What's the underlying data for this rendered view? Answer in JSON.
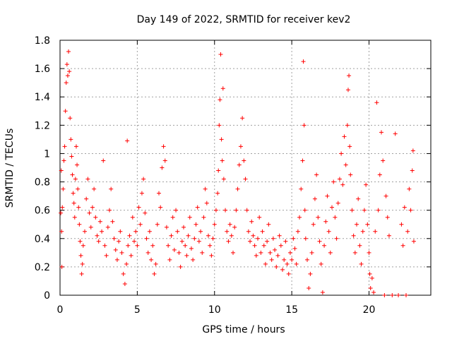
{
  "chart_data": {
    "type": "scatter",
    "title": "Day 149 of 2022, SRMTID for receiver kev2",
    "xlabel": "GPS time / hours",
    "ylabel": "SRMTID / TECUs",
    "xlim": [
      0,
      24
    ],
    "ylim": [
      0,
      1.8
    ],
    "xticks": [
      0,
      5,
      10,
      15,
      20
    ],
    "xtick_labels": [
      "0",
      "5",
      "10",
      "15",
      "20"
    ],
    "yticks": [
      0,
      0.2,
      0.4,
      0.6,
      0.8,
      1.0,
      1.2,
      1.4,
      1.6,
      1.8
    ],
    "ytick_labels": [
      "0",
      "0.2",
      "0.4",
      "0.6",
      "0.8",
      "1",
      "1.2",
      "1.4",
      "1.6",
      "1.8"
    ],
    "grid": true,
    "marker": "plus",
    "color": "#ff0000",
    "series": [
      {
        "name": "kev2",
        "points": [
          [
            0.05,
            0.58
          ],
          [
            0.08,
            0.88
          ],
          [
            0.1,
            0.45
          ],
          [
            0.12,
            0.2
          ],
          [
            0.15,
            0.62
          ],
          [
            0.2,
            0.75
          ],
          [
            0.25,
            0.95
          ],
          [
            0.3,
            1.05
          ],
          [
            0.35,
            1.3
          ],
          [
            0.4,
            1.5
          ],
          [
            0.45,
            1.63
          ],
          [
            0.5,
            1.55
          ],
          [
            0.55,
            1.72
          ],
          [
            0.6,
            1.58
          ],
          [
            0.65,
            1.25
          ],
          [
            0.7,
            1.1
          ],
          [
            0.75,
            0.98
          ],
          [
            0.8,
            0.85
          ],
          [
            0.85,
            0.72
          ],
          [
            0.9,
            0.65
          ],
          [
            0.95,
            0.55
          ],
          [
            1.0,
            0.82
          ],
          [
            1.05,
            1.05
          ],
          [
            1.1,
            0.92
          ],
          [
            1.15,
            0.75
          ],
          [
            1.2,
            0.62
          ],
          [
            1.25,
            0.5
          ],
          [
            1.3,
            0.38
          ],
          [
            1.35,
            0.28
          ],
          [
            1.4,
            0.15
          ],
          [
            1.45,
            0.22
          ],
          [
            1.5,
            0.35
          ],
          [
            1.6,
            0.45
          ],
          [
            1.7,
            0.68
          ],
          [
            1.8,
            0.82
          ],
          [
            1.9,
            0.58
          ],
          [
            2.0,
            0.48
          ],
          [
            2.1,
            0.62
          ],
          [
            2.2,
            0.75
          ],
          [
            2.3,
            0.55
          ],
          [
            2.4,
            0.42
          ],
          [
            2.5,
            0.38
          ],
          [
            2.6,
            0.52
          ],
          [
            2.7,
            0.45
          ],
          [
            2.8,
            0.95
          ],
          [
            2.9,
            0.35
          ],
          [
            3.0,
            0.28
          ],
          [
            3.1,
            0.48
          ],
          [
            3.2,
            0.6
          ],
          [
            3.3,
            0.75
          ],
          [
            3.4,
            0.52
          ],
          [
            3.5,
            0.4
          ],
          [
            3.6,
            0.32
          ],
          [
            3.7,
            0.25
          ],
          [
            3.8,
            0.38
          ],
          [
            3.9,
            0.45
          ],
          [
            4.0,
            0.3
          ],
          [
            4.1,
            0.15
          ],
          [
            4.2,
            0.08
          ],
          [
            4.3,
            0.22
          ],
          [
            4.35,
            1.09
          ],
          [
            4.4,
            0.35
          ],
          [
            4.5,
            0.42
          ],
          [
            4.6,
            0.28
          ],
          [
            4.7,
            0.55
          ],
          [
            4.8,
            0.38
          ],
          [
            4.9,
            0.45
          ],
          [
            5.0,
            0.35
          ],
          [
            5.1,
            0.62
          ],
          [
            5.2,
            0.5
          ],
          [
            5.3,
            0.72
          ],
          [
            5.4,
            0.82
          ],
          [
            5.5,
            0.58
          ],
          [
            5.6,
            0.4
          ],
          [
            5.7,
            0.3
          ],
          [
            5.8,
            0.45
          ],
          [
            5.9,
            0.25
          ],
          [
            6.0,
            0.35
          ],
          [
            6.1,
            0.15
          ],
          [
            6.2,
            0.22
          ],
          [
            6.3,
            0.5
          ],
          [
            6.4,
            0.72
          ],
          [
            6.5,
            0.62
          ],
          [
            6.6,
            0.9
          ],
          [
            6.7,
            1.05
          ],
          [
            6.8,
            0.95
          ],
          [
            6.9,
            0.48
          ],
          [
            7.0,
            0.35
          ],
          [
            7.1,
            0.25
          ],
          [
            7.2,
            0.42
          ],
          [
            7.3,
            0.55
          ],
          [
            7.4,
            0.32
          ],
          [
            7.5,
            0.6
          ],
          [
            7.6,
            0.45
          ],
          [
            7.7,
            0.3
          ],
          [
            7.8,
            0.2
          ],
          [
            7.9,
            0.38
          ],
          [
            8.0,
            0.48
          ],
          [
            8.1,
            0.35
          ],
          [
            8.2,
            0.28
          ],
          [
            8.3,
            0.42
          ],
          [
            8.4,
            0.55
          ],
          [
            8.5,
            0.33
          ],
          [
            8.6,
            0.25
          ],
          [
            8.7,
            0.4
          ],
          [
            8.8,
            0.5
          ],
          [
            8.9,
            0.62
          ],
          [
            9.0,
            0.38
          ],
          [
            9.1,
            0.45
          ],
          [
            9.2,
            0.3
          ],
          [
            9.3,
            0.55
          ],
          [
            9.4,
            0.75
          ],
          [
            9.5,
            0.65
          ],
          [
            9.6,
            0.42
          ],
          [
            9.7,
            0.35
          ],
          [
            9.8,
            0.28
          ],
          [
            9.9,
            0.4
          ],
          [
            10.0,
            0.5
          ],
          [
            10.1,
            0.6
          ],
          [
            10.2,
            0.72
          ],
          [
            10.25,
            0.88
          ],
          [
            10.3,
            1.2
          ],
          [
            10.35,
            1.38
          ],
          [
            10.4,
            1.7
          ],
          [
            10.45,
            1.1
          ],
          [
            10.5,
            0.95
          ],
          [
            10.55,
            1.46
          ],
          [
            10.6,
            0.82
          ],
          [
            10.7,
            0.6
          ],
          [
            10.8,
            0.45
          ],
          [
            10.9,
            0.38
          ],
          [
            11.0,
            0.5
          ],
          [
            11.1,
            0.42
          ],
          [
            11.2,
            0.3
          ],
          [
            11.3,
            0.48
          ],
          [
            11.4,
            0.6
          ],
          [
            11.5,
            0.75
          ],
          [
            11.6,
            0.92
          ],
          [
            11.7,
            1.05
          ],
          [
            11.8,
            1.25
          ],
          [
            11.9,
            0.95
          ],
          [
            12.0,
            0.82
          ],
          [
            12.1,
            0.6
          ],
          [
            12.2,
            0.45
          ],
          [
            12.3,
            0.38
          ],
          [
            12.4,
            0.52
          ],
          [
            12.5,
            0.42
          ],
          [
            12.6,
            0.35
          ],
          [
            12.7,
            0.28
          ],
          [
            12.8,
            0.4
          ],
          [
            12.9,
            0.55
          ],
          [
            13.0,
            0.3
          ],
          [
            13.1,
            0.45
          ],
          [
            13.2,
            0.35
          ],
          [
            13.3,
            0.22
          ],
          [
            13.4,
            0.38
          ],
          [
            13.5,
            0.5
          ],
          [
            13.6,
            0.3
          ],
          [
            13.7,
            0.25
          ],
          [
            13.8,
            0.4
          ],
          [
            13.9,
            0.32
          ],
          [
            14.0,
            0.2
          ],
          [
            14.1,
            0.28
          ],
          [
            14.2,
            0.42
          ],
          [
            14.3,
            0.35
          ],
          [
            14.4,
            0.18
          ],
          [
            14.5,
            0.25
          ],
          [
            14.6,
            0.38
          ],
          [
            14.7,
            0.22
          ],
          [
            14.8,
            0.15
          ],
          [
            14.9,
            0.3
          ],
          [
            15.0,
            0.25
          ],
          [
            15.1,
            0.4
          ],
          [
            15.2,
            0.33
          ],
          [
            15.3,
            0.22
          ],
          [
            15.4,
            0.45
          ],
          [
            15.5,
            0.55
          ],
          [
            15.6,
            0.75
          ],
          [
            15.7,
            0.95
          ],
          [
            15.75,
            1.65
          ],
          [
            15.8,
            1.2
          ],
          [
            15.85,
            0.6
          ],
          [
            15.9,
            0.4
          ],
          [
            16.0,
            0.25
          ],
          [
            16.1,
            0.05
          ],
          [
            16.2,
            0.15
          ],
          [
            16.3,
            0.3
          ],
          [
            16.4,
            0.5
          ],
          [
            16.5,
            0.68
          ],
          [
            16.6,
            0.85
          ],
          [
            16.7,
            0.55
          ],
          [
            16.8,
            0.38
          ],
          [
            16.9,
            0.22
          ],
          [
            17.0,
            0.02
          ],
          [
            17.1,
            0.35
          ],
          [
            17.2,
            0.52
          ],
          [
            17.3,
            0.7
          ],
          [
            17.4,
            0.45
          ],
          [
            17.5,
            0.3
          ],
          [
            17.6,
            0.62
          ],
          [
            17.7,
            0.8
          ],
          [
            17.8,
            0.55
          ],
          [
            17.9,
            0.4
          ],
          [
            18.0,
            0.65
          ],
          [
            18.1,
            0.82
          ],
          [
            18.2,
            1.0
          ],
          [
            18.3,
            0.78
          ],
          [
            18.4,
            1.12
          ],
          [
            18.5,
            0.92
          ],
          [
            18.6,
            1.2
          ],
          [
            18.65,
            1.45
          ],
          [
            18.7,
            1.55
          ],
          [
            18.75,
            1.05
          ],
          [
            18.8,
            0.85
          ],
          [
            18.9,
            0.6
          ],
          [
            19.0,
            0.42
          ],
          [
            19.1,
            0.3
          ],
          [
            19.2,
            0.5
          ],
          [
            19.3,
            0.68
          ],
          [
            19.4,
            0.35
          ],
          [
            19.5,
            0.22
          ],
          [
            19.6,
            0.45
          ],
          [
            19.7,
            0.6
          ],
          [
            19.8,
            0.78
          ],
          [
            19.9,
            0.5
          ],
          [
            20.0,
            0.3
          ],
          [
            20.05,
            0.15
          ],
          [
            20.1,
            0.05
          ],
          [
            20.2,
            0.12
          ],
          [
            20.3,
            0.02
          ],
          [
            20.4,
            0.45
          ],
          [
            20.5,
            1.36
          ],
          [
            20.6,
            0.6
          ],
          [
            20.7,
            0.85
          ],
          [
            20.8,
            1.15
          ],
          [
            20.9,
            0.95
          ],
          [
            21.0,
            0.0
          ],
          [
            21.1,
            0.7
          ],
          [
            21.2,
            0.55
          ],
          [
            21.3,
            0.42
          ],
          [
            21.5,
            0.0
          ],
          [
            21.7,
            1.14
          ],
          [
            21.9,
            0.0
          ],
          [
            22.1,
            0.5
          ],
          [
            22.2,
            0.35
          ],
          [
            22.3,
            0.62
          ],
          [
            22.4,
            0.0
          ],
          [
            22.5,
            0.45
          ],
          [
            22.6,
            0.75
          ],
          [
            22.7,
            0.6
          ],
          [
            22.8,
            0.88
          ],
          [
            22.85,
            1.02
          ],
          [
            22.9,
            0.38
          ]
        ]
      }
    ]
  }
}
